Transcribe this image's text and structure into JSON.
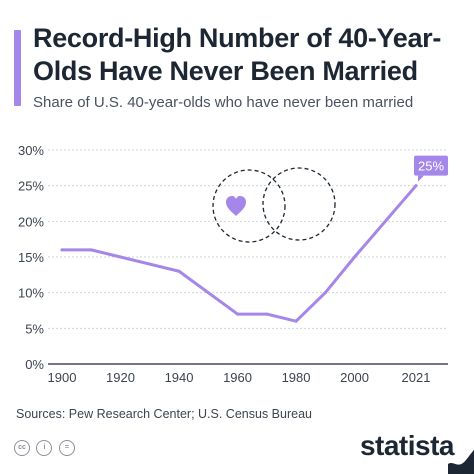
{
  "title": "Record-High Number of 40-Year-Olds Have Never Been Married",
  "subtitle": "Share of U.S. 40-year-olds who have never been married",
  "source": "Sources: Pew Research Center; U.S. Census Bureau",
  "brand": "statista",
  "colors": {
    "accent": "#a487e8",
    "line": "#a487e8",
    "text": "#1d2633",
    "grid": "#cfd3d8"
  },
  "chart_data": {
    "type": "line",
    "x": [
      1900,
      1910,
      1920,
      1940,
      1960,
      1970,
      1980,
      1990,
      2000,
      2021
    ],
    "series": [
      {
        "values": [
          16,
          16,
          15,
          13,
          7,
          7,
          6,
          10,
          15,
          25
        ]
      }
    ],
    "x_ticks": [
      1900,
      1920,
      1940,
      1960,
      1980,
      2000,
      2021
    ],
    "x_tick_labels": [
      "1900",
      "1920",
      "1940",
      "1960",
      "1980",
      "2000",
      "2021"
    ],
    "y_ticks": [
      0,
      5,
      10,
      15,
      20,
      25,
      30
    ],
    "y_tick_labels": [
      "0%",
      "5%",
      "10%",
      "15%",
      "20%",
      "25%",
      "30%"
    ],
    "xlim": [
      1900,
      2021
    ],
    "ylim": [
      0,
      30
    ],
    "grid": true,
    "end_label": "25%",
    "decoration": [
      "heart-icon",
      "interlocking-rings"
    ]
  }
}
